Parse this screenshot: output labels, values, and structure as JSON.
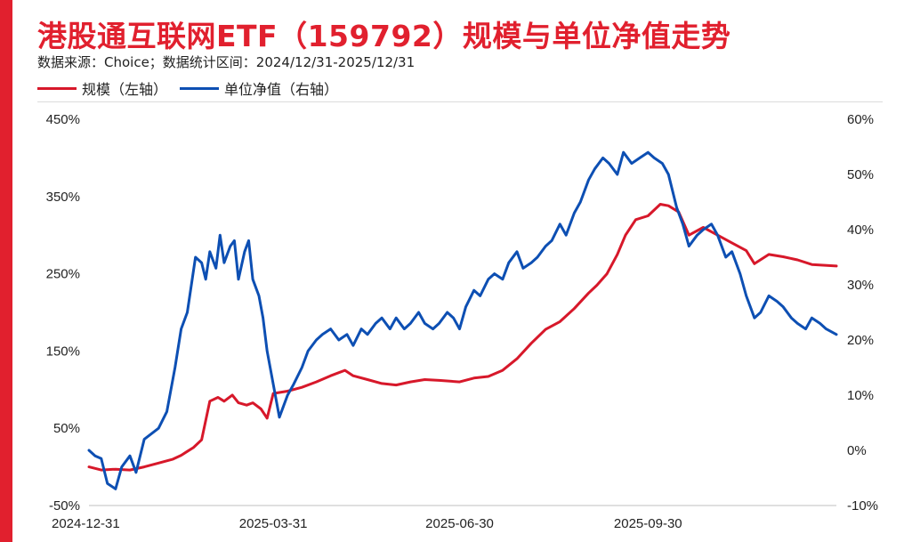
{
  "title": "港股通互联网ETF（159792）规模与单位净值走势",
  "source": "数据来源：Choice；数据统计区间：2024/12/31-2025/12/31",
  "colors": {
    "left_series": "#d7182a",
    "right_series": "#0d4fb3",
    "accent": "#e1202e"
  },
  "chart_data": {
    "type": "line",
    "title": "港股通互联网ETF（159792）规模与单位净值走势",
    "legend": "top-left",
    "grid": false,
    "y_left": {
      "ticks": [
        "450%",
        "350%",
        "250%",
        "150%",
        "50%",
        "-50%"
      ],
      "range": [
        -50,
        450
      ]
    },
    "y_right": {
      "ticks": [
        "60%",
        "50%",
        "40%",
        "30%",
        "20%",
        "10%",
        "0%",
        "-10%"
      ],
      "range": [
        -10,
        60
      ]
    },
    "x_ticks": [
      "2024-12-31",
      "2025-03-31",
      "2025-06-30",
      "2025-09-30"
    ],
    "x_range": [
      "2024-12-31",
      "2025-12-31"
    ],
    "series": [
      {
        "name": "规模（左轴）",
        "axis": "left",
        "points": [
          [
            "2024-12-31",
            0
          ],
          [
            "2025-01-06",
            -4
          ],
          [
            "2025-01-13",
            -3
          ],
          [
            "2025-01-20",
            -4
          ],
          [
            "2025-01-27",
            0
          ],
          [
            "2025-02-03",
            5
          ],
          [
            "2025-02-10",
            10
          ],
          [
            "2025-02-14",
            15
          ],
          [
            "2025-02-17",
            20
          ],
          [
            "2025-02-20",
            25
          ],
          [
            "2025-02-24",
            35
          ],
          [
            "2025-02-26",
            60
          ],
          [
            "2025-02-28",
            85
          ],
          [
            "2025-03-04",
            90
          ],
          [
            "2025-03-07",
            85
          ],
          [
            "2025-03-11",
            93
          ],
          [
            "2025-03-14",
            83
          ],
          [
            "2025-03-18",
            80
          ],
          [
            "2025-03-21",
            83
          ],
          [
            "2025-03-25",
            75
          ],
          [
            "2025-03-28",
            63
          ],
          [
            "2025-03-31",
            95
          ],
          [
            "2025-04-07",
            98
          ],
          [
            "2025-04-14",
            103
          ],
          [
            "2025-04-21",
            110
          ],
          [
            "2025-04-28",
            118
          ],
          [
            "2025-05-05",
            125
          ],
          [
            "2025-05-09",
            118
          ],
          [
            "2025-05-16",
            113
          ],
          [
            "2025-05-23",
            108
          ],
          [
            "2025-05-30",
            106
          ],
          [
            "2025-06-06",
            110
          ],
          [
            "2025-06-13",
            113
          ],
          [
            "2025-06-20",
            112
          ],
          [
            "2025-06-30",
            110
          ],
          [
            "2025-07-07",
            115
          ],
          [
            "2025-07-14",
            117
          ],
          [
            "2025-07-21",
            125
          ],
          [
            "2025-07-28",
            140
          ],
          [
            "2025-08-04",
            160
          ],
          [
            "2025-08-11",
            178
          ],
          [
            "2025-08-18",
            188
          ],
          [
            "2025-08-25",
            205
          ],
          [
            "2025-09-01",
            225
          ],
          [
            "2025-09-05",
            235
          ],
          [
            "2025-09-10",
            250
          ],
          [
            "2025-09-15",
            275
          ],
          [
            "2025-09-19",
            300
          ],
          [
            "2025-09-24",
            320
          ],
          [
            "2025-09-30",
            325
          ],
          [
            "2025-10-06",
            340
          ],
          [
            "2025-10-10",
            338
          ],
          [
            "2025-10-15",
            330
          ],
          [
            "2025-10-20",
            300
          ],
          [
            "2025-10-27",
            310
          ],
          [
            "2025-11-03",
            300
          ],
          [
            "2025-11-10",
            290
          ],
          [
            "2025-11-17",
            280
          ],
          [
            "2025-11-21",
            263
          ],
          [
            "2025-11-28",
            275
          ],
          [
            "2025-12-05",
            272
          ],
          [
            "2025-12-12",
            268
          ],
          [
            "2025-12-19",
            262
          ],
          [
            "2025-12-31",
            260
          ]
        ]
      },
      {
        "name": "单位净值（右轴）",
        "axis": "right",
        "points": [
          [
            "2024-12-31",
            0
          ],
          [
            "2025-01-03",
            -1
          ],
          [
            "2025-01-06",
            -1.5
          ],
          [
            "2025-01-09",
            -6
          ],
          [
            "2025-01-13",
            -7
          ],
          [
            "2025-01-16",
            -3
          ],
          [
            "2025-01-20",
            -1
          ],
          [
            "2025-01-23",
            -4
          ],
          [
            "2025-01-27",
            2
          ],
          [
            "2025-02-03",
            4
          ],
          [
            "2025-02-07",
            7
          ],
          [
            "2025-02-11",
            15
          ],
          [
            "2025-02-14",
            22
          ],
          [
            "2025-02-17",
            25
          ],
          [
            "2025-02-19",
            30
          ],
          [
            "2025-02-21",
            35
          ],
          [
            "2025-02-24",
            34
          ],
          [
            "2025-02-26",
            31
          ],
          [
            "2025-02-28",
            36
          ],
          [
            "2025-03-03",
            33
          ],
          [
            "2025-03-05",
            39
          ],
          [
            "2025-03-07",
            34
          ],
          [
            "2025-03-10",
            37
          ],
          [
            "2025-03-12",
            38
          ],
          [
            "2025-03-14",
            31
          ],
          [
            "2025-03-17",
            36
          ],
          [
            "2025-03-19",
            38
          ],
          [
            "2025-03-21",
            31
          ],
          [
            "2025-03-24",
            28
          ],
          [
            "2025-03-26",
            24
          ],
          [
            "2025-03-28",
            18
          ],
          [
            "2025-03-31",
            12
          ],
          [
            "2025-04-03",
            6
          ],
          [
            "2025-04-07",
            10
          ],
          [
            "2025-04-10",
            12
          ],
          [
            "2025-04-14",
            15
          ],
          [
            "2025-04-17",
            18
          ],
          [
            "2025-04-21",
            20
          ],
          [
            "2025-04-24",
            21
          ],
          [
            "2025-04-28",
            22
          ],
          [
            "2025-05-02",
            20
          ],
          [
            "2025-05-06",
            21
          ],
          [
            "2025-05-09",
            19
          ],
          [
            "2025-05-13",
            22
          ],
          [
            "2025-05-16",
            21
          ],
          [
            "2025-05-20",
            23
          ],
          [
            "2025-05-23",
            24
          ],
          [
            "2025-05-27",
            22
          ],
          [
            "2025-05-30",
            24
          ],
          [
            "2025-06-03",
            22
          ],
          [
            "2025-06-06",
            23
          ],
          [
            "2025-06-10",
            25
          ],
          [
            "2025-06-13",
            23
          ],
          [
            "2025-06-17",
            22
          ],
          [
            "2025-06-20",
            23
          ],
          [
            "2025-06-24",
            25
          ],
          [
            "2025-06-27",
            24
          ],
          [
            "2025-06-30",
            22
          ],
          [
            "2025-07-03",
            26
          ],
          [
            "2025-07-07",
            29
          ],
          [
            "2025-07-10",
            28
          ],
          [
            "2025-07-14",
            31
          ],
          [
            "2025-07-17",
            32
          ],
          [
            "2025-07-21",
            31
          ],
          [
            "2025-07-24",
            34
          ],
          [
            "2025-07-28",
            36
          ],
          [
            "2025-07-31",
            33
          ],
          [
            "2025-08-04",
            34
          ],
          [
            "2025-08-07",
            35
          ],
          [
            "2025-08-11",
            37
          ],
          [
            "2025-08-14",
            38
          ],
          [
            "2025-08-18",
            41
          ],
          [
            "2025-08-21",
            39
          ],
          [
            "2025-08-25",
            43
          ],
          [
            "2025-08-28",
            45
          ],
          [
            "2025-09-01",
            49
          ],
          [
            "2025-09-04",
            51
          ],
          [
            "2025-09-08",
            53
          ],
          [
            "2025-09-11",
            52
          ],
          [
            "2025-09-15",
            50
          ],
          [
            "2025-09-18",
            54
          ],
          [
            "2025-09-22",
            52
          ],
          [
            "2025-09-26",
            53
          ],
          [
            "2025-09-30",
            54
          ],
          [
            "2025-10-03",
            53
          ],
          [
            "2025-10-07",
            52
          ],
          [
            "2025-10-10",
            50
          ],
          [
            "2025-10-14",
            44
          ],
          [
            "2025-10-17",
            41
          ],
          [
            "2025-10-20",
            37
          ],
          [
            "2025-10-24",
            39
          ],
          [
            "2025-10-27",
            40
          ],
          [
            "2025-10-31",
            41
          ],
          [
            "2025-11-03",
            39
          ],
          [
            "2025-11-07",
            35
          ],
          [
            "2025-11-10",
            36
          ],
          [
            "2025-11-14",
            32
          ],
          [
            "2025-11-17",
            28
          ],
          [
            "2025-11-21",
            24
          ],
          [
            "2025-11-24",
            25
          ],
          [
            "2025-11-28",
            28
          ],
          [
            "2025-12-02",
            27
          ],
          [
            "2025-12-05",
            26
          ],
          [
            "2025-12-09",
            24
          ],
          [
            "2025-12-12",
            23
          ],
          [
            "2025-12-16",
            22
          ],
          [
            "2025-12-19",
            24
          ],
          [
            "2025-12-23",
            23
          ],
          [
            "2025-12-26",
            22
          ],
          [
            "2025-12-31",
            21
          ]
        ]
      }
    ]
  }
}
